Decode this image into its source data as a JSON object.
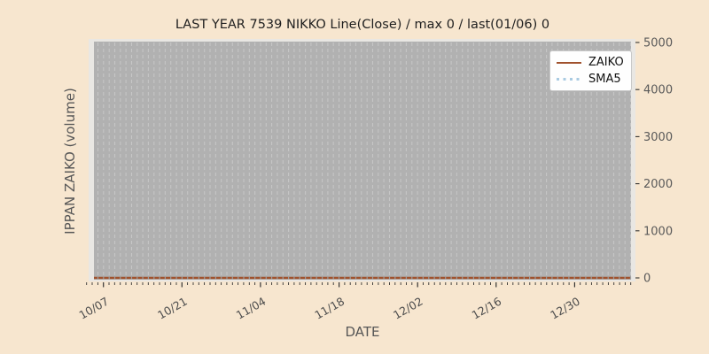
{
  "figure": {
    "background": "#f7e6cf",
    "title": "LAST YEAR 7539 NIKKO Line(Close) / max 0 / last(01/06) 0"
  },
  "axes": {
    "xlabel": "DATE",
    "ylabel": "IPPAN ZAIKO (volume)",
    "plot_bg": "#b1b1b1",
    "plot_edge": "#e9e7e3",
    "grid_color": "#c6c6c6",
    "tick_color": "#333333",
    "tick_label_color": "#555555"
  },
  "chart_data": {
    "type": "line",
    "title": "LAST YEAR 7539 NIKKO Line(Close) / max 0 / last(01/06) 0",
    "xlabel": "DATE",
    "ylabel": "IPPAN ZAIKO (volume)",
    "x_range": [
      "10/04",
      "01/09"
    ],
    "x_tick_labels": [
      "10/07",
      "10/21",
      "11/04",
      "11/18",
      "12/02",
      "12/16",
      "12/30"
    ],
    "x_major_interval_days": 14,
    "num_grid_days": 96,
    "num_tick_days": 98,
    "first_major_tick_index": 3,
    "y_ticks": [
      0,
      1000,
      2000,
      3000,
      4000,
      5000
    ],
    "ylim": [
      -100,
      5100
    ],
    "grid": "vertical dashed line per day",
    "legend_position": "upper right",
    "max": 0,
    "last_date": "01/06",
    "last_value": 0,
    "series": [
      {
        "name": "ZAIKO",
        "color": "#a0522d",
        "linestyle": "solid",
        "constant_value": 0,
        "note": "flat line at 0 for every date from 10/07 through 01/06"
      },
      {
        "name": "SMA5",
        "color": "#a9cbe2",
        "linestyle": "dotted",
        "constant_value": 0,
        "note": "5-day moving average, also flat at 0 (hidden beneath ZAIKO line)"
      }
    ]
  }
}
